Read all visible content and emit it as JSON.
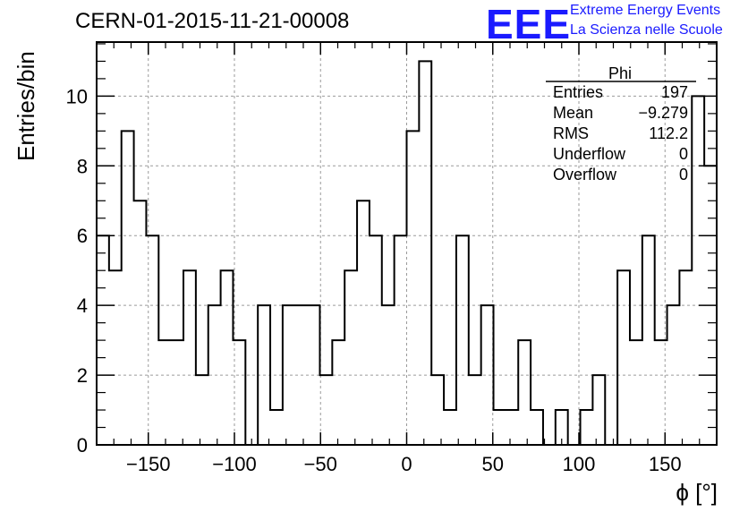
{
  "title": "CERN-01-2015-11-21-00008",
  "logo": {
    "mark": "EEE",
    "line1": "Extreme Energy Events",
    "line2": "La Scienza nelle Scuole",
    "color": "#1a1aff"
  },
  "stats": {
    "name": "Phi",
    "rows": [
      {
        "label": "Entries",
        "value": "197"
      },
      {
        "label": "Mean",
        "value": "−9.279"
      },
      {
        "label": "RMS",
        "value": "112.2"
      },
      {
        "label": "Underflow",
        "value": "0"
      },
      {
        "label": "Overflow",
        "value": "0"
      }
    ]
  },
  "chart_data": {
    "type": "bar",
    "histogram": true,
    "xlabel": "ϕ [°]",
    "ylabel": "Entries/bin",
    "xlim": [
      -180,
      180
    ],
    "ylim": [
      0,
      11.55
    ],
    "bin_width": 7.2,
    "xticks": [
      -150,
      -100,
      -50,
      0,
      50,
      100,
      150
    ],
    "xtick_labels": [
      "−150",
      "−100",
      "−50",
      "0",
      "50",
      "100",
      "150"
    ],
    "yticks": [
      0,
      2,
      4,
      6,
      8,
      10
    ],
    "grid": true,
    "values": [
      6,
      5,
      9,
      7,
      6,
      3,
      3,
      5,
      2,
      4,
      5,
      3,
      0,
      4,
      1,
      4,
      4,
      4,
      2,
      3,
      5,
      7,
      6,
      4,
      6,
      9,
      11,
      2,
      1,
      6,
      2,
      4,
      1,
      1,
      3,
      1,
      0,
      1,
      0,
      1,
      2,
      0,
      5,
      3,
      6,
      3,
      4,
      5,
      10,
      8
    ]
  }
}
